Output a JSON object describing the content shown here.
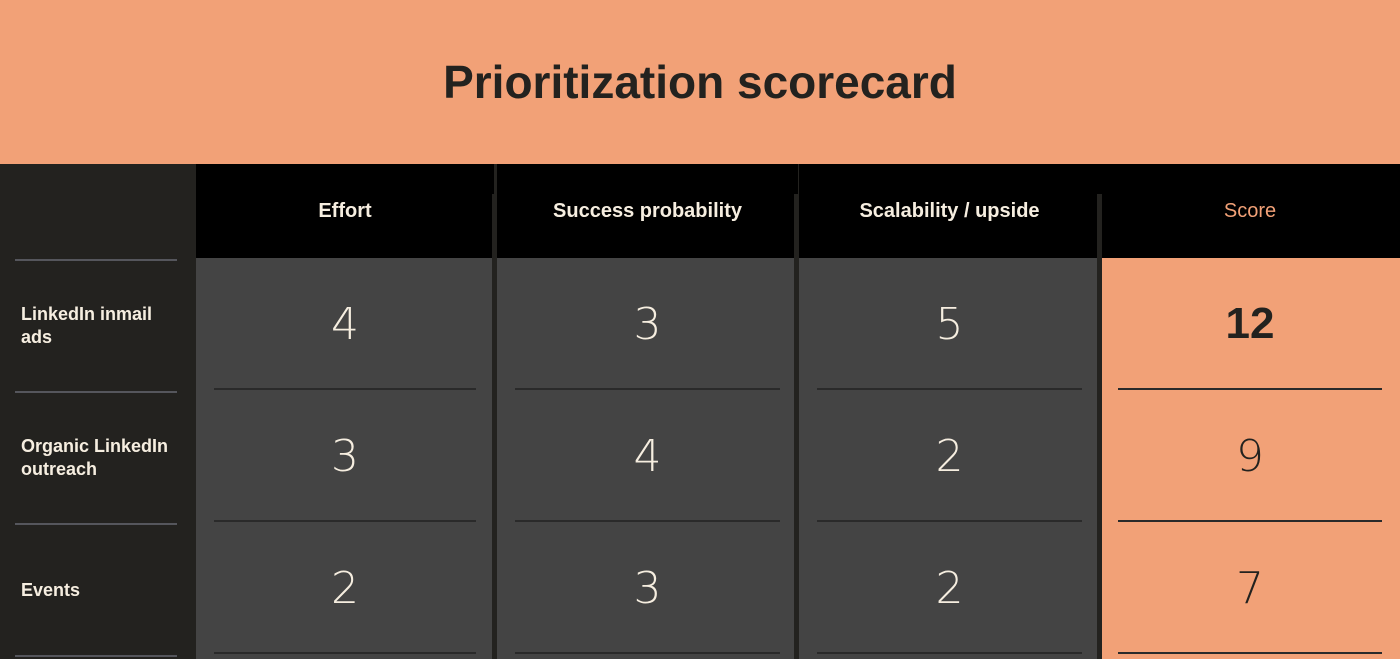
{
  "title": "Prioritization scorecard",
  "columns": [
    "Effort",
    "Success probability",
    "Scalability / upside",
    "Score"
  ],
  "rows": [
    {
      "label": "LinkedIn inmail ads",
      "values": [
        "4",
        "3",
        "5"
      ],
      "score": "12"
    },
    {
      "label": "Organic LinkedIn outreach",
      "values": [
        "3",
        "4",
        "2"
      ],
      "score": "9"
    },
    {
      "label": "Events",
      "values": [
        "2",
        "3",
        "2"
      ],
      "score": "7"
    }
  ],
  "colors": {
    "accent": "#f2a177",
    "dark": "#23221f",
    "cell": "#444444",
    "header": "#000000"
  }
}
